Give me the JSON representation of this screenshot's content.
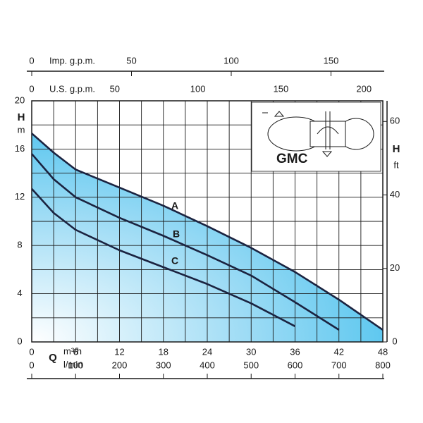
{
  "chart_data": {
    "type": "line",
    "title": "GMC",
    "x": [
      0,
      3,
      6,
      12,
      18,
      24,
      30,
      36,
      42,
      48
    ],
    "series": [
      {
        "name": "A",
        "color": "#1b2340",
        "values": [
          17.3,
          15.7,
          14.3,
          12.8,
          11.3,
          9.6,
          7.8,
          5.8,
          3.5,
          1.0
        ]
      },
      {
        "name": "B",
        "color": "#1b2340",
        "values": [
          15.6,
          13.5,
          12.0,
          10.3,
          8.8,
          7.2,
          5.5,
          3.3,
          1.0,
          null
        ]
      },
      {
        "name": "C",
        "color": "#1b2340",
        "values": [
          12.7,
          10.7,
          9.3,
          7.6,
          6.2,
          4.8,
          3.2,
          1.3,
          null,
          null
        ]
      }
    ],
    "fill_color": "#4fc3ee",
    "x_label": "Q",
    "x_unit": "m³/h",
    "xlim": [
      0,
      48
    ],
    "xticks": [
      0,
      6,
      12,
      18,
      24,
      30,
      36,
      42,
      48
    ],
    "xgrid": [
      3,
      9,
      15,
      21,
      27,
      33,
      39,
      45
    ],
    "y_label": "H",
    "y_unit": "m",
    "ylim": [
      0,
      20
    ],
    "yticks": [
      0,
      4,
      8,
      12,
      16,
      20
    ],
    "ygrid": [
      2,
      6,
      10,
      14,
      18
    ],
    "y2_label": "H",
    "y2_unit": "ft",
    "y2lim": [
      0,
      65.62
    ],
    "y2ticks": [
      0,
      20,
      40,
      60
    ],
    "x2_axes": [
      {
        "label": "l/min",
        "lim": [
          0,
          800
        ],
        "ticks": [
          0,
          100,
          200,
          300,
          400,
          500,
          600,
          700,
          800
        ]
      },
      {
        "label": "U.S. g.p.m.",
        "lim": [
          0,
          211.35
        ],
        "ticks": [
          0,
          50,
          100,
          150,
          200
        ]
      },
      {
        "label": "Imp. g.p.m.",
        "lim": [
          0,
          175.98
        ],
        "ticks": [
          0,
          50,
          100,
          150
        ]
      }
    ],
    "grid": true
  }
}
